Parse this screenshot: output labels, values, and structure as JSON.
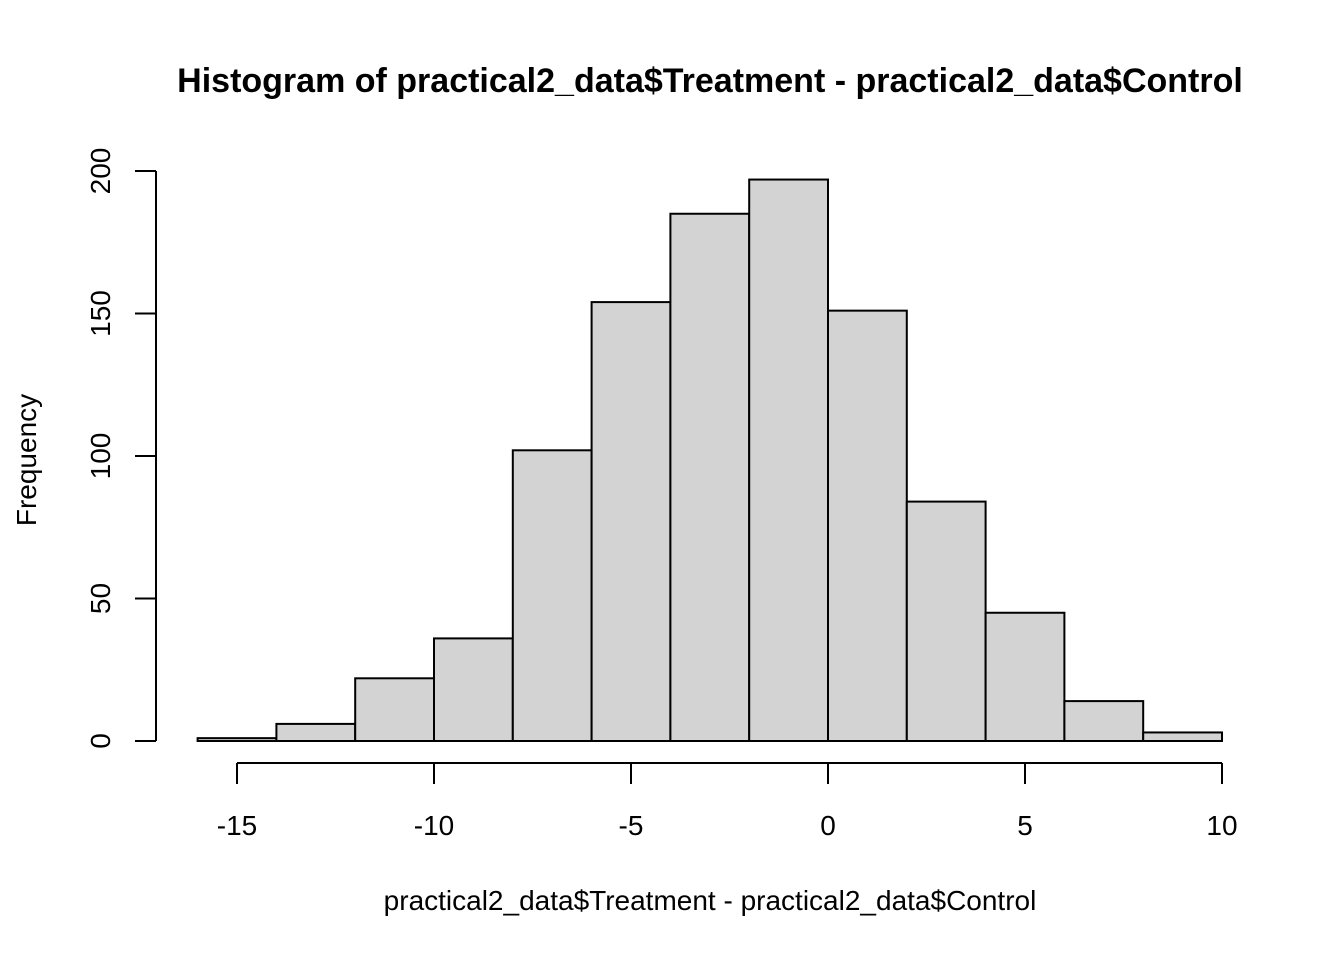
{
  "chart_data": {
    "type": "bar",
    "title": "Histogram of practical2_data$Treatment - practical2_data$Control",
    "xlabel": "practical2_data$Treatment - practical2_data$Control",
    "ylabel": "Frequency",
    "bins": [
      {
        "x0": -16,
        "x1": -14,
        "count": 1
      },
      {
        "x0": -14,
        "x1": -12,
        "count": 6
      },
      {
        "x0": -12,
        "x1": -10,
        "count": 22
      },
      {
        "x0": -10,
        "x1": -8,
        "count": 36
      },
      {
        "x0": -8,
        "x1": -6,
        "count": 102
      },
      {
        "x0": -6,
        "x1": -4,
        "count": 154
      },
      {
        "x0": -4,
        "x1": -2,
        "count": 185
      },
      {
        "x0": -2,
        "x1": 0,
        "count": 197
      },
      {
        "x0": 0,
        "x1": 2,
        "count": 151
      },
      {
        "x0": 2,
        "x1": 4,
        "count": 84
      },
      {
        "x0": 4,
        "x1": 6,
        "count": 45
      },
      {
        "x0": 6,
        "x1": 8,
        "count": 14
      },
      {
        "x0": 8,
        "x1": 10,
        "count": 3
      }
    ],
    "x_ticks": [
      -15,
      -10,
      -5,
      0,
      5,
      10
    ],
    "x_tick_labels": [
      "-15",
      "-10",
      "-5",
      "0",
      "5",
      "10"
    ],
    "y_ticks": [
      0,
      50,
      100,
      150,
      200
    ],
    "y_tick_labels": [
      "0",
      "50",
      "100",
      "150",
      "200"
    ],
    "xlim": [
      -16,
      10
    ],
    "ylim": [
      0,
      200
    ],
    "bar_color": "#d3d3d3",
    "grid": false
  }
}
